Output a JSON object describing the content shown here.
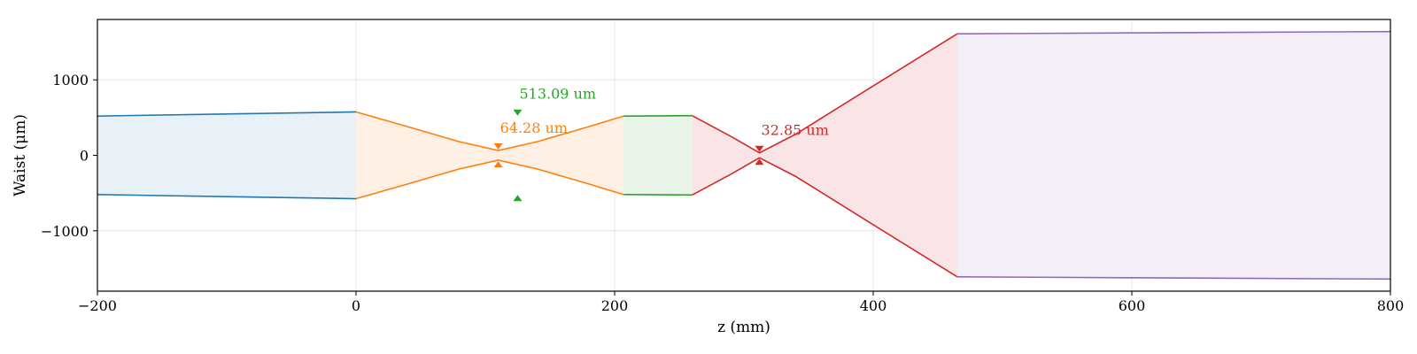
{
  "chart_data": {
    "type": "area",
    "title": "",
    "xlabel": "z (mm)",
    "ylabel": "Waist (μm)",
    "xlim": [
      -200,
      800
    ],
    "ylim": [
      -1800,
      1800
    ],
    "x_ticks": [
      -200,
      0,
      200,
      400,
      600,
      800
    ],
    "x_tick_labels": [
      "−200",
      "0",
      "200",
      "400",
      "600",
      "800"
    ],
    "y_ticks": [
      1000,
      0,
      -1000
    ],
    "y_tick_labels": [
      "1000",
      "0",
      "−1000"
    ],
    "grid": true,
    "series": [
      {
        "color": "#1f77b4",
        "fill": "#e8f0f8",
        "points": [
          [
            -200,
            520
          ],
          [
            0,
            575
          ]
        ]
      },
      {
        "color": "#ff7f0e",
        "fill": "#fff0e3",
        "points": [
          [
            0,
            575
          ],
          [
            40,
            380
          ],
          [
            80,
            180
          ],
          [
            110,
            64.28
          ],
          [
            140,
            180
          ],
          [
            180,
            380
          ],
          [
            207,
            520
          ]
        ]
      },
      {
        "color": "#2ca02c",
        "fill": "#e8f4e8",
        "points": [
          [
            207,
            520
          ],
          [
            260,
            525
          ]
        ]
      },
      {
        "color": "#d62728",
        "fill": "#f9e5e6",
        "points": [
          [
            260,
            525
          ],
          [
            290,
            250
          ],
          [
            312,
            32.85
          ],
          [
            340,
            280
          ],
          [
            400,
            920
          ],
          [
            465,
            1610
          ]
        ]
      },
      {
        "color": "#9467bd",
        "fill": "#f3eef8",
        "points": [
          [
            465,
            1610
          ],
          [
            800,
            1640
          ]
        ]
      }
    ],
    "waist_markers": [
      {
        "color": "#ff7f0e",
        "x": 110,
        "y": 64.28,
        "label": "64.28 um"
      },
      {
        "color": "#2ca02c",
        "x": 125,
        "y": 513.09,
        "label": "513.09 um"
      },
      {
        "color": "#d62728",
        "x": 312,
        "y": 32.85,
        "label": "32.85 um"
      }
    ]
  }
}
